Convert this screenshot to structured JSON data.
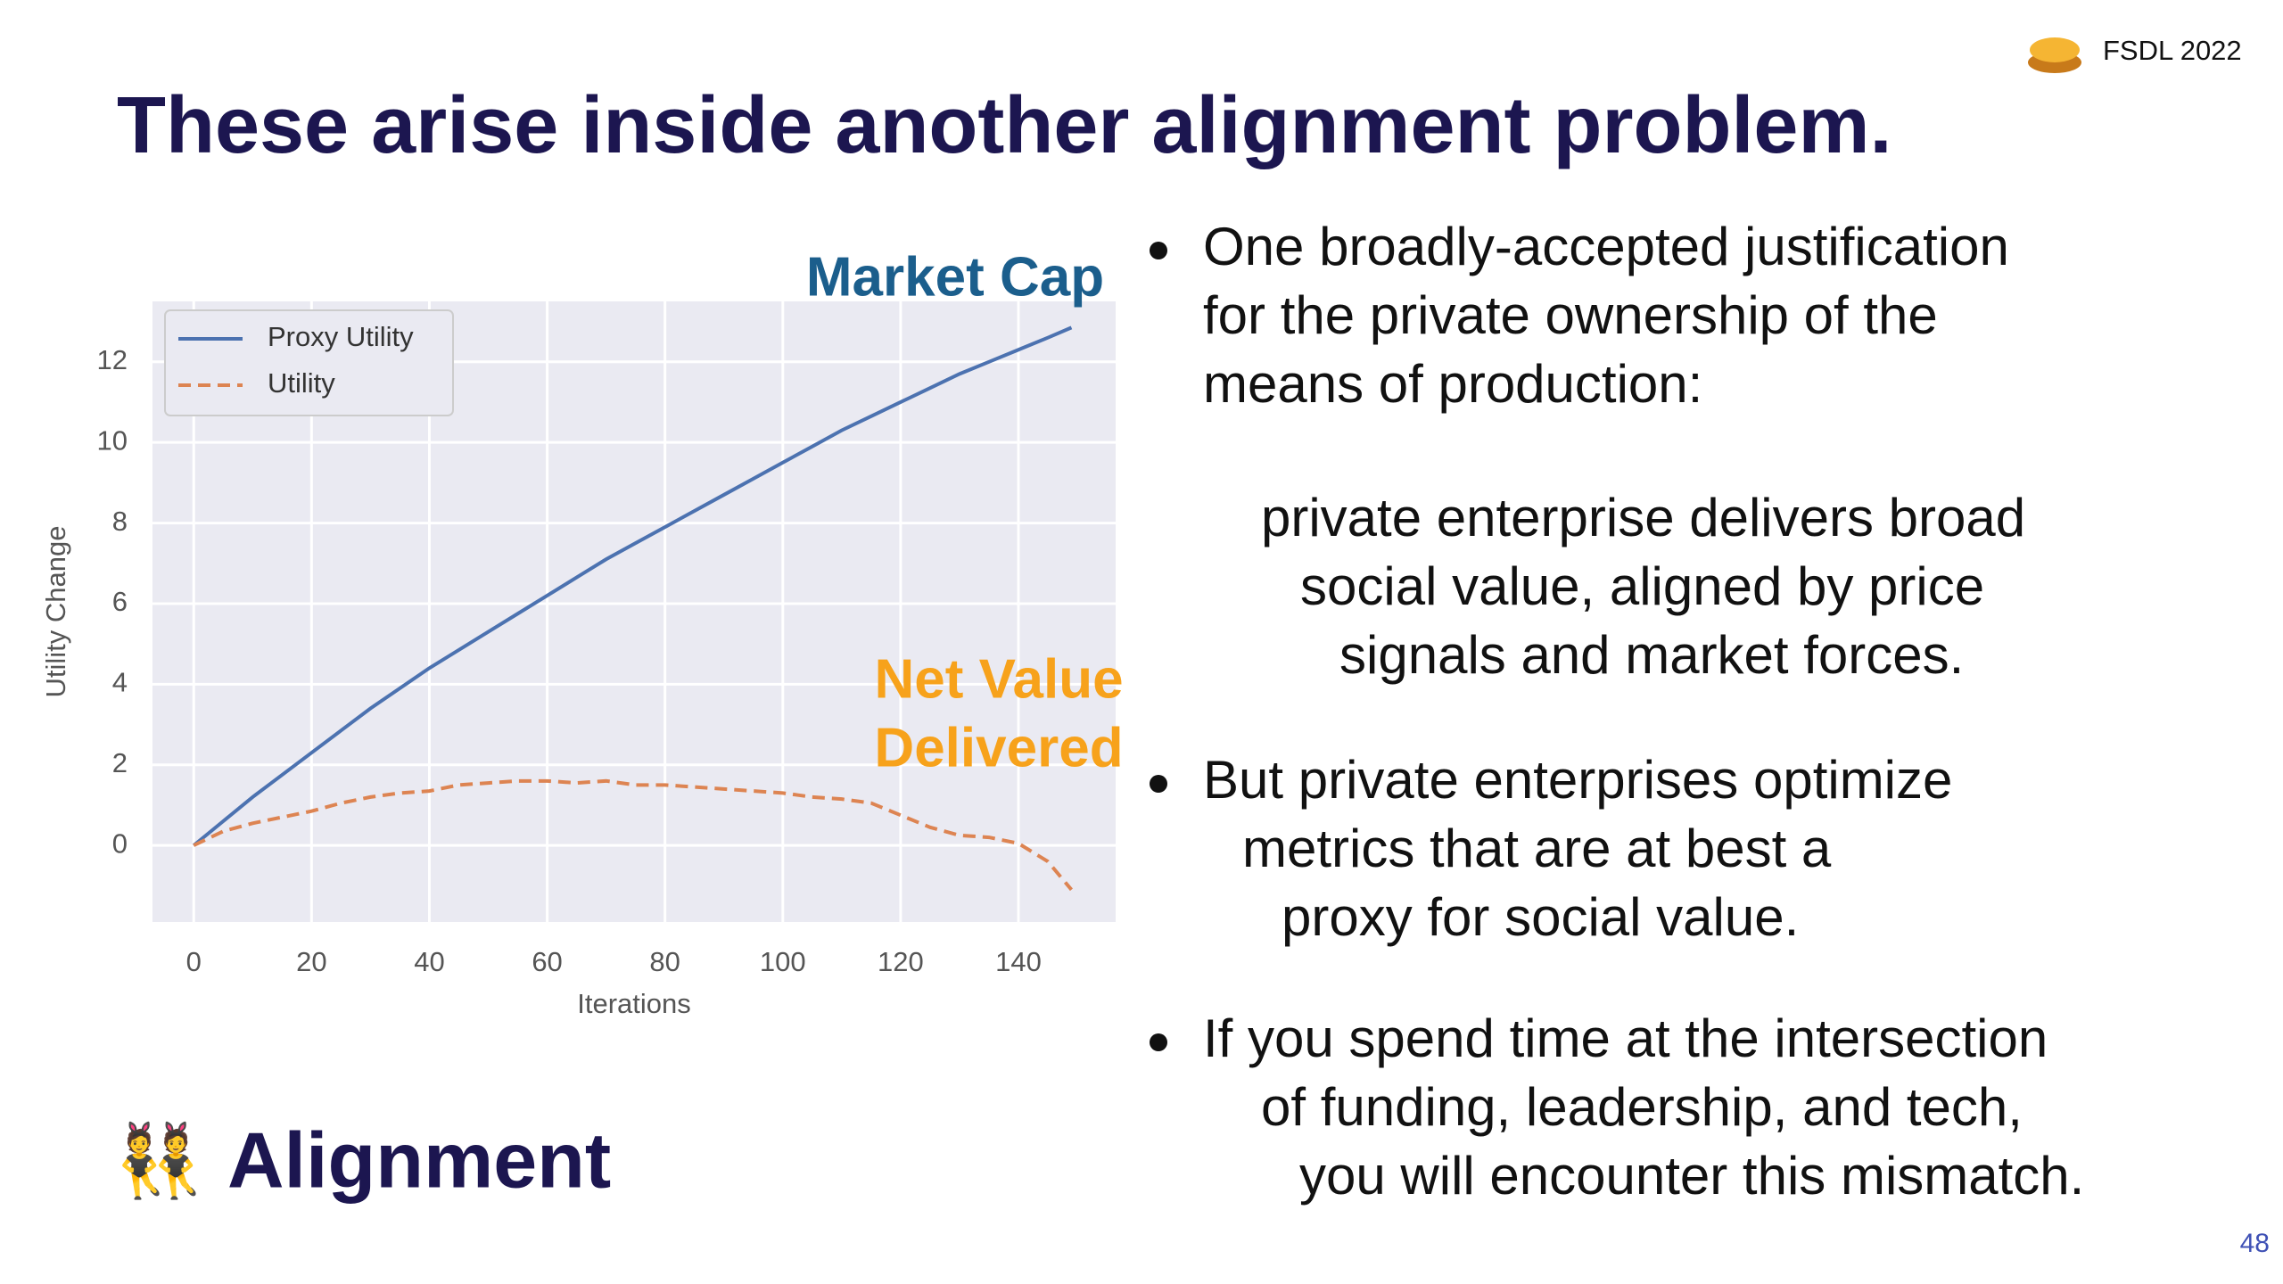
{
  "header": {
    "title": "These arise inside another alignment problem.",
    "badge": "FSDL 2022"
  },
  "chart_data": {
    "type": "line",
    "x": [
      0,
      5,
      10,
      15,
      20,
      25,
      30,
      35,
      40,
      45,
      50,
      55,
      60,
      65,
      70,
      75,
      80,
      85,
      90,
      95,
      100,
      105,
      110,
      115,
      120,
      125,
      130,
      135,
      140,
      145,
      149
    ],
    "series": [
      {
        "name": "Proxy Utility",
        "color": "#4c72b0",
        "dash": false,
        "values": [
          0,
          0.6,
          1.2,
          1.75,
          2.3,
          2.85,
          3.4,
          3.9,
          4.4,
          4.85,
          5.3,
          5.75,
          6.2,
          6.65,
          7.1,
          7.5,
          7.9,
          8.3,
          8.7,
          9.1,
          9.5,
          9.9,
          10.3,
          10.65,
          11.0,
          11.35,
          11.7,
          12.0,
          12.3,
          12.6,
          12.85
        ]
      },
      {
        "name": "Utility",
        "color": "#dd8452",
        "dash": true,
        "values": [
          0,
          0.35,
          0.55,
          0.7,
          0.85,
          1.05,
          1.2,
          1.3,
          1.35,
          1.5,
          1.55,
          1.6,
          1.6,
          1.55,
          1.6,
          1.5,
          1.5,
          1.45,
          1.4,
          1.35,
          1.3,
          1.2,
          1.15,
          1.05,
          0.75,
          0.45,
          0.25,
          0.2,
          0.05,
          -0.4,
          -1.1
        ]
      }
    ],
    "xlim": [
      -7,
      156.5
    ],
    "ylim": [
      -1.9,
      13.5
    ],
    "xticks": [
      0,
      20,
      40,
      60,
      80,
      100,
      120,
      140
    ],
    "yticks": [
      0,
      2,
      4,
      6,
      8,
      10,
      12
    ],
    "xlabel": "Iterations",
    "ylabel": "Utility Change",
    "grid": true,
    "legend": "upper-left",
    "annotations": [
      {
        "lines": [
          "Market Cap"
        ],
        "color": "#1b5e8c"
      },
      {
        "lines": [
          "Net Value",
          "Delivered"
        ],
        "color": "#f7a21b"
      }
    ]
  },
  "bullets": [
    {
      "lines": [
        "One broadly-accepted justification",
        "for the private ownership of the",
        "means of production:"
      ]
    },
    {
      "lines": [
        "But private enterprises optimize",
        "metrics that are at best a",
        "proxy for social value."
      ]
    },
    {
      "lines": [
        "If you spend time at the intersection",
        "of funding, leadership, and tech,",
        "you will encounter this mismatch."
      ]
    }
  ],
  "quote": {
    "lines": [
      "private enterprise delivers broad",
      "social value, aligned by price",
      "signals and market forces."
    ]
  },
  "footer": {
    "icon": "👯",
    "label": "Alignment",
    "page": "48"
  }
}
